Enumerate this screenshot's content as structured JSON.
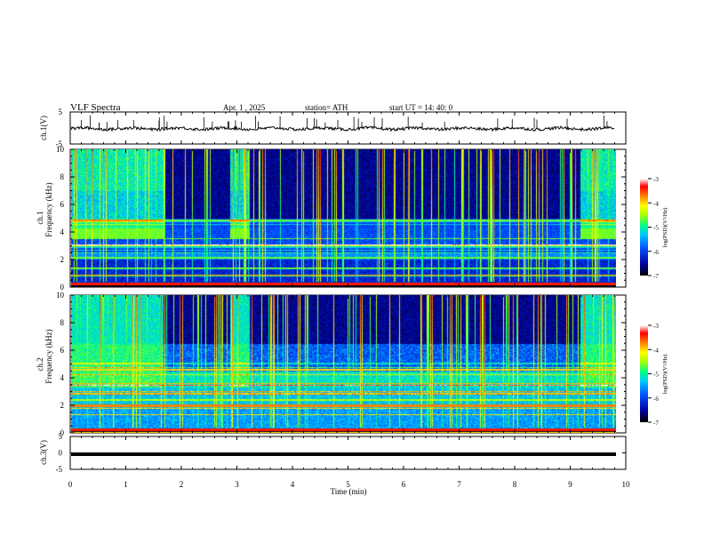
{
  "header": {
    "title": "VLF  Spectra",
    "date": "Apr. 1  , 2025",
    "station": "station= ATH",
    "start": "start  UT  =   14: 40: 0"
  },
  "chart_data": [
    {
      "type": "line",
      "name": "ch1-waveform",
      "ylabel": "ch.1(V)",
      "ylim": [
        -5,
        5
      ],
      "yticks": [
        "5",
        "-5"
      ],
      "xlim": [
        0,
        10
      ]
    },
    {
      "type": "heatmap",
      "name": "ch1-spectrogram",
      "ylabel_top": "ch.1",
      "ylabel": "Frequency  (kHz)",
      "ylim": [
        0,
        10
      ],
      "yticks": [
        "0",
        "2",
        "4",
        "6",
        "8",
        "10"
      ],
      "xlim": [
        0,
        10
      ],
      "data_end_min": 9.8,
      "colorbar": {
        "label": "log(PSD)(V²/Hz)",
        "range": [
          -7,
          -3
        ],
        "ticks": [
          "-3",
          "-4",
          "-5",
          "-6",
          "-7"
        ]
      }
    },
    {
      "type": "heatmap",
      "name": "ch2-spectrogram",
      "ylabel_top": "ch.2",
      "ylabel": "Frequency  (kHz)",
      "ylim": [
        0,
        10
      ],
      "yticks": [
        "0",
        "2",
        "4",
        "6",
        "8",
        "10"
      ],
      "xlim": [
        0,
        10
      ],
      "data_end_min": 9.8,
      "colorbar": {
        "label": "log(PSD)(V²/Hz)",
        "range": [
          -7,
          -3
        ],
        "ticks": [
          "-3",
          "-4",
          "-5",
          "-6",
          "-7"
        ]
      }
    },
    {
      "type": "line",
      "name": "ch3-waveform",
      "ylabel": "ch.3(V)",
      "ylim": [
        -5,
        5
      ],
      "yticks": [
        "5",
        "0",
        "-5"
      ],
      "xlim": [
        0,
        10
      ],
      "xlabel": "Time  (min)",
      "xticks": [
        "0",
        "1",
        "2",
        "3",
        "4",
        "5",
        "6",
        "7",
        "8",
        "9",
        "10"
      ]
    }
  ]
}
